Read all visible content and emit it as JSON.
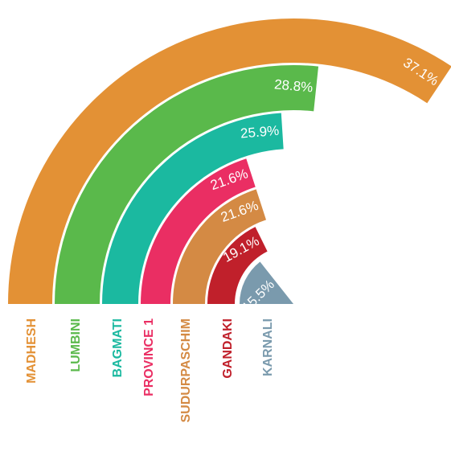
{
  "chart_data": {
    "type": "radial-bar",
    "categories": [
      "MADHESH",
      "LUMBINI",
      "BAGMATI",
      "PROVINCE 1",
      "SUDURPASCHIM",
      "GANDAKI",
      "KARNALI"
    ],
    "values": [
      37.1,
      28.8,
      25.9,
      21.6,
      21.6,
      19.1,
      15.5
    ],
    "value_labels": [
      "37.1%",
      "28.8%",
      "25.9%",
      "21.6%",
      "21.6%",
      "19.1%",
      "15.5%"
    ],
    "colors": [
      "#e39135",
      "#5ab94b",
      "#1bb9a0",
      "#ea2e63",
      "#d48a44",
      "#c0202b",
      "#7a9aad"
    ],
    "xlim": [
      0,
      54
    ]
  }
}
